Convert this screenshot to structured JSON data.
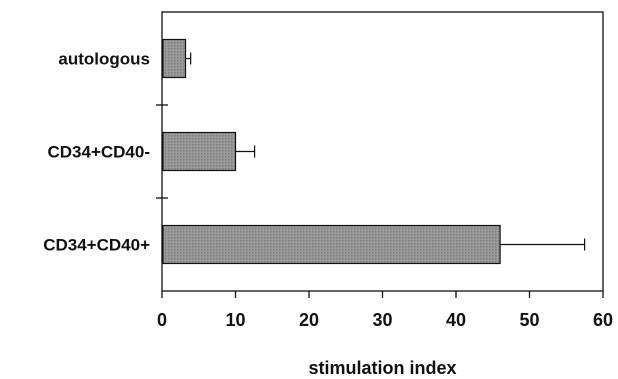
{
  "chart_data": {
    "type": "bar",
    "orientation": "horizontal",
    "categories": [
      "autologous",
      "CD34+CD40-",
      "CD34+CD40+"
    ],
    "values": [
      3.2,
      10,
      46
    ],
    "errors": [
      0.7,
      2.6,
      11.5
    ],
    "title": "",
    "xlabel": "stimulation index",
    "ylabel": "",
    "xlim": [
      0,
      60
    ],
    "xticks": [
      0,
      10,
      20,
      30,
      40,
      50,
      60
    ],
    "grid": false,
    "bar_fill": "#8f8f8f",
    "axis_color": "#111111"
  }
}
